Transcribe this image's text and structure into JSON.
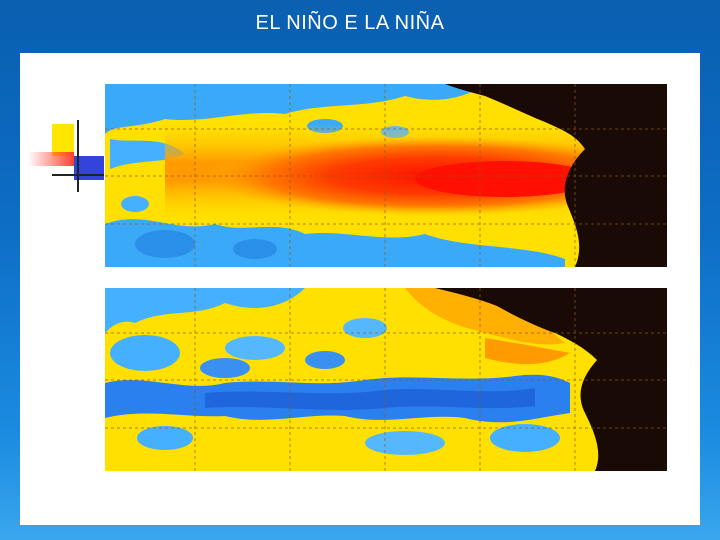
{
  "slide": {
    "title": "EL NIÑO E LA NIÑA"
  },
  "images": [
    {
      "name": "el-nino-sea-surface-temperature-map"
    },
    {
      "name": "la-nina-sea-surface-temperature-map"
    }
  ],
  "colors": {
    "background_blue": "#0d6cc4",
    "warm_red": "#ff1a00",
    "warm_orange": "#ff8a00",
    "neutral_yellow": "#ffe600",
    "cool_light_blue": "#33aaff",
    "cool_blue": "#2277ee",
    "land_black": "#1a0a05",
    "grid_brown": "#8a5a20"
  }
}
